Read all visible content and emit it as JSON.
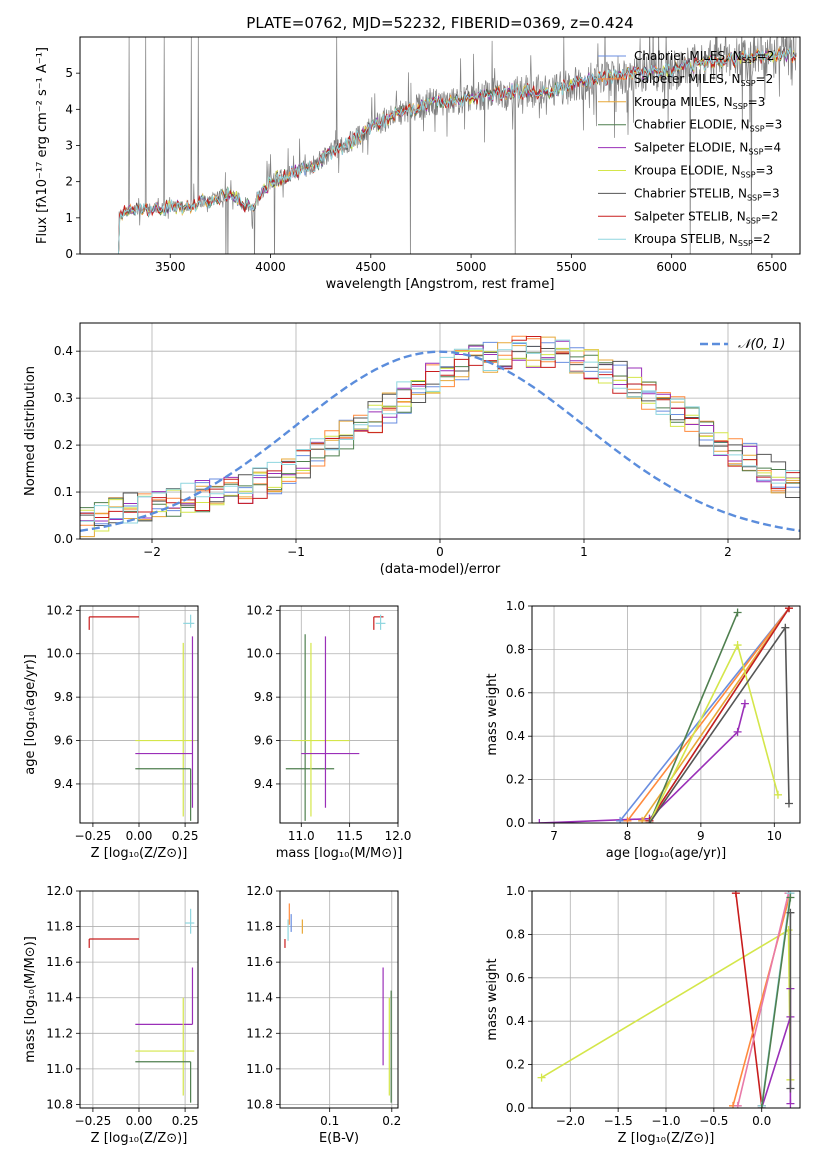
{
  "figure_title": "PLATE=0762, MJD=52232, FIBERID=0369, z=0.424",
  "colors": {
    "Chabrier MILES": "#6a8ee0",
    "Salpeter MILES": "#ff8a3d",
    "Kroupa MILES": "#e8a838",
    "Chabrier ELODIE": "#4f7f4f",
    "Salpeter ELODIE": "#9a2fb8",
    "Kroupa ELODIE": "#d4e64a",
    "Chabrier STELIB": "#555555",
    "Salpeter STELIB": "#c81d1d",
    "Kroupa STELIB": "#8fd6df",
    "data": "#808080",
    "gaussian": "#5b8ddc",
    "pink": "#e87aa8"
  },
  "chart_data": [
    {
      "id": "spectrum",
      "type": "line",
      "xlabel": "wavelength [Angstrom, rest frame]",
      "ylabel": "Flux [fλ10⁻¹⁷ erg cm⁻² s⁻¹ A⁻¹]",
      "xlim": [
        3050,
        6640
      ],
      "ylim": [
        0,
        6
      ],
      "xticks": [
        3500,
        4000,
        4500,
        5000,
        5500,
        6000,
        6500
      ],
      "yticks": [
        0,
        1,
        2,
        3,
        4,
        5
      ],
      "grid": false,
      "legend_position": "right",
      "legend": [
        {
          "label": "Chabrier MILES, N_SSP=2",
          "text": "Chabrier MILES, N",
          "sub": "SSP",
          "tail": "=2",
          "key": "Chabrier MILES"
        },
        {
          "label": "Salpeter MILES, N_SSP=2",
          "text": "Salpeter MILES, N",
          "sub": "SSP",
          "tail": "=2",
          "key": "Salpeter MILES"
        },
        {
          "label": "Kroupa MILES, N_SSP=3",
          "text": "Kroupa MILES, N",
          "sub": "SSP",
          "tail": "=3",
          "key": "Kroupa MILES"
        },
        {
          "label": "Chabrier ELODIE, N_SSP=3",
          "text": "Chabrier ELODIE, N",
          "sub": "SSP",
          "tail": "=3",
          "key": "Chabrier ELODIE"
        },
        {
          "label": "Salpeter ELODIE, N_SSP=4",
          "text": "Salpeter ELODIE, N",
          "sub": "SSP",
          "tail": "=4",
          "key": "Salpeter ELODIE"
        },
        {
          "label": "Kroupa ELODIE, N_SSP=3",
          "text": "Kroupa ELODIE, N",
          "sub": "SSP",
          "tail": "=3",
          "key": "Kroupa ELODIE"
        },
        {
          "label": "Chabrier STELIB, N_SSP=3",
          "text": "Chabrier STELIB, N",
          "sub": "SSP",
          "tail": "=3",
          "key": "Chabrier STELIB"
        },
        {
          "label": "Salpeter STELIB, N_SSP=2",
          "text": "Salpeter STELIB, N",
          "sub": "SSP",
          "tail": "=2",
          "key": "Salpeter STELIB"
        },
        {
          "label": "Kroupa STELIB, N_SSP=2",
          "text": "Kroupa STELIB, N",
          "sub": "SSP",
          "tail": "=2",
          "key": "Kroupa STELIB"
        }
      ],
      "model_continuum": [
        [
          3240,
          0.0
        ],
        [
          3245,
          1.1
        ],
        [
          3300,
          1.2
        ],
        [
          3400,
          1.25
        ],
        [
          3500,
          1.3
        ],
        [
          3600,
          1.35
        ],
        [
          3700,
          1.5
        ],
        [
          3800,
          1.7
        ],
        [
          3860,
          1.4
        ],
        [
          3900,
          1.3
        ],
        [
          3950,
          1.6
        ],
        [
          4000,
          2.0
        ],
        [
          4100,
          2.2
        ],
        [
          4200,
          2.4
        ],
        [
          4300,
          2.8
        ],
        [
          4400,
          3.1
        ],
        [
          4500,
          3.5
        ],
        [
          4600,
          3.8
        ],
        [
          4700,
          4.0
        ],
        [
          4800,
          4.2
        ],
        [
          4900,
          4.2
        ],
        [
          5000,
          4.3
        ],
        [
          5100,
          4.4
        ],
        [
          5200,
          4.5
        ],
        [
          5300,
          4.5
        ],
        [
          5400,
          4.5
        ],
        [
          5500,
          4.7
        ],
        [
          5600,
          4.8
        ],
        [
          5700,
          4.9
        ],
        [
          5800,
          5.0
        ],
        [
          5900,
          5.0
        ],
        [
          6000,
          5.1
        ],
        [
          6100,
          5.2
        ],
        [
          6200,
          5.3
        ],
        [
          6300,
          5.4
        ],
        [
          6400,
          5.45
        ],
        [
          6500,
          5.5
        ]
      ]
    },
    {
      "id": "residuals",
      "type": "area",
      "xlabel": "(data-model)/error",
      "ylabel": "Normed distribution",
      "xlim": [
        -2.5,
        2.5
      ],
      "ylim": [
        0,
        0.46
      ],
      "xticks": [
        -2,
        -1,
        0,
        1,
        2
      ],
      "yticks": [
        0.0,
        0.1,
        0.2,
        0.3,
        0.4
      ],
      "grid": true,
      "legend_position": "top-right",
      "legend": [
        {
          "label": "𝒩(0, 1)",
          "key": "gaussian"
        }
      ],
      "bin_width": 0.1,
      "histogram_envelope": [
        0.04,
        0.05,
        0.06,
        0.065,
        0.07,
        0.075,
        0.08,
        0.085,
        0.09,
        0.095,
        0.1,
        0.11,
        0.12,
        0.13,
        0.145,
        0.16,
        0.18,
        0.2,
        0.22,
        0.24,
        0.26,
        0.28,
        0.3,
        0.32,
        0.34,
        0.355,
        0.37,
        0.38,
        0.39,
        0.395,
        0.4,
        0.4,
        0.395,
        0.39,
        0.38,
        0.37,
        0.36,
        0.345,
        0.33,
        0.31,
        0.29,
        0.27,
        0.25,
        0.23,
        0.21,
        0.19,
        0.17,
        0.15,
        0.13,
        0.115,
        0.1
      ]
    },
    {
      "id": "age_vs_Z",
      "type": "scatter",
      "xlabel": "Z [log₁₀(Z/Z⊙)]",
      "ylabel": "age  [log₁₀(age/yr)]",
      "xlim": [
        -0.32,
        0.32
      ],
      "ylim": [
        9.22,
        10.22
      ],
      "xticks": [
        -0.25,
        0.0,
        0.25
      ],
      "yticks": [
        9.4,
        9.6,
        9.8,
        10.0,
        10.2
      ],
      "grid": true,
      "points": [
        {
          "key": "Salpeter STELIB",
          "x": -0.27,
          "y": 10.17,
          "xerr": [
            0.0,
            0.27
          ],
          "yerr": [
            0.06,
            0.0
          ]
        },
        {
          "key": "Kroupa ELODIE",
          "x": 0.24,
          "y": 9.6,
          "xerr": [
            0.26,
            0.06
          ],
          "yerr": [
            0.35,
            0.45
          ]
        },
        {
          "key": "Salpeter ELODIE",
          "x": 0.29,
          "y": 9.54,
          "xerr": [
            0.31,
            0.0
          ],
          "yerr": [
            0.25,
            0.54
          ]
        },
        {
          "key": "Chabrier ELODIE",
          "x": 0.28,
          "y": 9.47,
          "xerr": [
            0.3,
            0.0
          ],
          "yerr": [
            0.24,
            0.0
          ]
        },
        {
          "key": "Kroupa STELIB",
          "x": 0.28,
          "y": 10.14,
          "xerr": [
            0.04,
            0.02
          ],
          "yerr": [
            0.02,
            0.04
          ]
        }
      ]
    },
    {
      "id": "age_vs_mass",
      "type": "scatter",
      "xlabel": "mass [log₁₀(M/M⊙)]",
      "ylabel": "",
      "xlim": [
        10.78,
        12.0
      ],
      "ylim": [
        9.22,
        10.22
      ],
      "xticks": [
        11.0,
        11.5,
        12.0
      ],
      "yticks": [
        9.4,
        9.6,
        9.8,
        10.0,
        10.2
      ],
      "grid": true,
      "points": [
        {
          "key": "Chabrier ELODIE",
          "x": 11.04,
          "y": 9.47,
          "xerr": [
            0.2,
            0.3
          ],
          "yerr": [
            0.24,
            0.62
          ]
        },
        {
          "key": "Kroupa ELODIE",
          "x": 11.1,
          "y": 9.6,
          "xerr": [
            0.2,
            0.4
          ],
          "yerr": [
            0.35,
            0.45
          ]
        },
        {
          "key": "Salpeter ELODIE",
          "x": 11.25,
          "y": 9.54,
          "xerr": [
            0.25,
            0.35
          ],
          "yerr": [
            0.25,
            0.54
          ]
        },
        {
          "key": "Salpeter STELIB",
          "x": 11.75,
          "y": 10.17,
          "xerr": [
            0.0,
            0.1
          ],
          "yerr": [
            0.06,
            0.0
          ]
        },
        {
          "key": "Kroupa STELIB",
          "x": 11.82,
          "y": 10.14,
          "xerr": [
            0.05,
            0.05
          ],
          "yerr": [
            0.03,
            0.04
          ]
        }
      ]
    },
    {
      "id": "weight_vs_age",
      "type": "line",
      "xlabel": "age  [log₁₀(age/yr)]",
      "ylabel": "mass weight",
      "xlim": [
        6.7,
        10.35
      ],
      "ylim": [
        0,
        1
      ],
      "xticks": [
        7,
        8,
        9,
        10
      ],
      "yticks": [
        0.0,
        0.2,
        0.4,
        0.6,
        0.8,
        1.0
      ],
      "grid": true,
      "series": [
        {
          "key": "Salpeter ELODIE",
          "x": [
            6.8,
            8.3,
            9.5,
            9.6
          ],
          "y": [
            0.0,
            0.02,
            0.42,
            0.55
          ]
        },
        {
          "key": "Chabrier MILES",
          "x": [
            7.9,
            10.2
          ],
          "y": [
            0.01,
            0.99
          ]
        },
        {
          "key": "Salpeter MILES",
          "x": [
            8.0,
            10.2
          ],
          "y": [
            0.01,
            0.99
          ]
        },
        {
          "key": "Kroupa MILES",
          "x": [
            8.2,
            10.2
          ],
          "y": [
            0.01,
            0.99
          ]
        },
        {
          "key": "Kroupa STELIB",
          "x": [
            8.3,
            10.2
          ],
          "y": [
            0.01,
            0.99
          ]
        },
        {
          "key": "Salpeter STELIB",
          "x": [
            8.3,
            10.2
          ],
          "y": [
            0.01,
            0.99
          ]
        },
        {
          "key": "Chabrier ELODIE",
          "x": [
            8.3,
            9.5
          ],
          "y": [
            0.0,
            0.97
          ]
        },
        {
          "key": "Kroupa ELODIE",
          "x": [
            8.3,
            9.5,
            10.05
          ],
          "y": [
            0.0,
            0.82,
            0.13
          ]
        },
        {
          "key": "Chabrier STELIB",
          "x": [
            8.3,
            10.15,
            10.2
          ],
          "y": [
            0.0,
            0.9,
            0.09
          ]
        }
      ]
    },
    {
      "id": "mass_vs_Z",
      "type": "scatter",
      "xlabel": "Z [log₁₀(Z/Z⊙)]",
      "ylabel": "mass [log₁₀(M/M⊙)]",
      "xlim": [
        -0.32,
        0.32
      ],
      "ylim": [
        10.78,
        12.0
      ],
      "xticks": [
        -0.25,
        0.0,
        0.25
      ],
      "yticks": [
        10.8,
        11.0,
        11.2,
        11.4,
        11.6,
        11.8,
        12.0
      ],
      "grid": true,
      "points": [
        {
          "key": "Salpeter STELIB",
          "x": -0.27,
          "y": 11.73,
          "xerr": [
            0.0,
            0.27
          ],
          "yerr": [
            0.05,
            0.0
          ]
        },
        {
          "key": "Salpeter ELODIE",
          "x": 0.29,
          "y": 11.25,
          "xerr": [
            0.31,
            0.0
          ],
          "yerr": [
            0.0,
            0.32
          ]
        },
        {
          "key": "Kroupa ELODIE",
          "x": 0.24,
          "y": 11.1,
          "xerr": [
            0.26,
            0.06
          ],
          "yerr": [
            0.25,
            0.3
          ]
        },
        {
          "key": "Chabrier ELODIE",
          "x": 0.28,
          "y": 11.04,
          "xerr": [
            0.3,
            0.0
          ],
          "yerr": [
            0.23,
            0.0
          ]
        },
        {
          "key": "Kroupa STELIB",
          "x": 0.28,
          "y": 11.82,
          "xerr": [
            0.03,
            0.02
          ],
          "yerr": [
            0.06,
            0.08
          ]
        }
      ]
    },
    {
      "id": "mass_vs_ebv",
      "type": "scatter",
      "xlabel": "E(B-V)",
      "ylabel": "",
      "xlim": [
        0.02,
        0.21
      ],
      "ylim": [
        10.78,
        12.0
      ],
      "xticks": [
        0.1,
        0.2
      ],
      "yticks": [
        10.8,
        11.0,
        11.2,
        11.4,
        11.6,
        11.8,
        12.0
      ],
      "grid": true,
      "points": [
        {
          "key": "Salpeter STELIB",
          "x": 0.028,
          "y": 11.73,
          "yerr": [
            0.05,
            0.0
          ]
        },
        {
          "key": "Chabrier MILES",
          "x": 0.038,
          "y": 11.82,
          "yerr": [
            0.05,
            0.05
          ]
        },
        {
          "key": "Kroupa STELIB",
          "x": 0.033,
          "y": 11.78,
          "yerr": [
            0.06,
            0.06
          ]
        },
        {
          "key": "Salpeter MILES",
          "x": 0.035,
          "y": 11.87,
          "yerr": [
            0.06,
            0.06
          ]
        },
        {
          "key": "Kroupa MILES",
          "x": 0.056,
          "y": 11.8,
          "yerr": [
            0.04,
            0.04
          ]
        },
        {
          "key": "Salpeter ELODIE",
          "x": 0.186,
          "y": 11.25,
          "yerr": [
            0.23,
            0.32
          ]
        },
        {
          "key": "Kroupa ELODIE",
          "x": 0.196,
          "y": 11.1,
          "yerr": [
            0.25,
            0.3
          ]
        },
        {
          "key": "Chabrier ELODIE",
          "x": 0.199,
          "y": 11.04,
          "yerr": [
            0.23,
            0.4
          ]
        }
      ]
    },
    {
      "id": "weight_vs_Z",
      "type": "line",
      "xlabel": "Z [log₁₀(Z/Z⊙)]",
      "ylabel": "mass weight",
      "xlim": [
        -2.4,
        0.4
      ],
      "ylim": [
        0,
        1
      ],
      "xticks": [
        -2.0,
        -1.5,
        -1.0,
        -0.5,
        0.0
      ],
      "yticks": [
        0.0,
        0.2,
        0.4,
        0.6,
        0.8,
        1.0
      ],
      "grid": true,
      "series": [
        {
          "key": "Kroupa ELODIE",
          "x": [
            -2.3,
            0.28,
            0.3
          ],
          "y": [
            0.14,
            0.82,
            0.13
          ]
        },
        {
          "key": "Salpeter STELIB",
          "x": [
            -0.27,
            0.0
          ],
          "y": [
            0.99,
            0.01
          ]
        },
        {
          "key": "Salpeter ELODIE",
          "x": [
            0.0,
            0.3,
            0.3,
            0.3
          ],
          "y": [
            0.0,
            0.42,
            0.55,
            0.02
          ]
        },
        {
          "key": "Salpeter MILES",
          "x": [
            -0.3,
            0.3
          ],
          "y": [
            0.01,
            0.99
          ]
        },
        {
          "key": "pink",
          "x": [
            -0.25,
            0.28
          ],
          "y": [
            0.01,
            0.99
          ]
        },
        {
          "key": "Kroupa STELIB",
          "x": [
            0.0,
            0.3
          ],
          "y": [
            0.01,
            0.99
          ]
        },
        {
          "key": "Chabrier ELODIE",
          "x": [
            0.0,
            0.3
          ],
          "y": [
            0.0,
            0.97
          ]
        },
        {
          "key": "Chabrier STELIB",
          "x": [
            0.3,
            0.3
          ],
          "y": [
            0.09,
            0.9
          ]
        }
      ]
    }
  ]
}
